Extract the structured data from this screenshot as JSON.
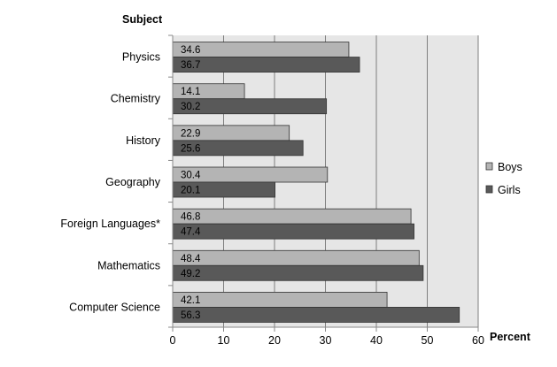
{
  "chart_data": {
    "type": "bar",
    "orientation": "horizontal",
    "title": "",
    "xlabel": "Percent",
    "ylabel": "Subject",
    "categories": [
      "Physics",
      "Chemistry",
      "History",
      "Geography",
      "Foreign Languages*",
      "Mathematics",
      "Computer Science"
    ],
    "series": [
      {
        "name": "Boys",
        "color": "#b4b4b4",
        "values": [
          34.6,
          14.1,
          22.9,
          30.4,
          46.8,
          48.4,
          42.1
        ]
      },
      {
        "name": "Girls",
        "color": "#595959",
        "values": [
          36.7,
          30.2,
          25.6,
          20.1,
          47.4,
          49.2,
          56.3
        ]
      }
    ],
    "xlim": [
      0,
      60
    ],
    "xticks": [
      0,
      10,
      20,
      30,
      40,
      50,
      60
    ],
    "grid": true,
    "plot_background": "#e6e6e6",
    "legend": "right"
  }
}
